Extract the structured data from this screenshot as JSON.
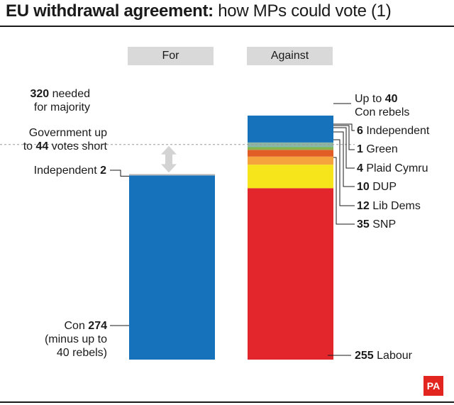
{
  "title": {
    "bold": "EU withdrawal agreement:",
    "rest": "how MPs could vote (1)"
  },
  "columns": {
    "for": "For",
    "against": "Against"
  },
  "labels": {
    "majority_num": "320",
    "majority_text1": "needed",
    "majority_text2": "for majority",
    "short_line1": "Government up",
    "short_pre": "to",
    "short_num": "44",
    "short_post": "votes short",
    "indep_left_text": "Independent",
    "indep_left_num": "2",
    "con_text": "Con",
    "con_num": "274",
    "con_line2": "(minus up to",
    "con_line3": "40 rebels)",
    "rebels_pre": "Up to",
    "rebels_num": "40",
    "rebels_line2": "Con rebels",
    "ind_num": "6",
    "ind_text": "Independent",
    "green_num": "1",
    "green_text": "Green",
    "plaid_num": "4",
    "plaid_text": "Plaid Cymru",
    "dup_num": "10",
    "dup_text": "DUP",
    "lib_num": "12",
    "lib_text": "Lib Dems",
    "snp_num": "35",
    "snp_text": "SNP",
    "labour_num": "255",
    "labour_text": "Labour"
  },
  "logo": "PA",
  "colors": {
    "con": "#1673bb",
    "labour": "#e2262b",
    "snp": "#f7e51c",
    "libdems": "#f5a33c",
    "dup": "#e25d26",
    "plaid": "#8ab24a",
    "green": "#6cc0a8",
    "independent": "#b8b8b8",
    "header_bg": "#d9d9d9"
  },
  "chart_data": {
    "type": "bar",
    "majority": 320,
    "series": [
      {
        "column": "For",
        "stack": [
          {
            "party": "Con",
            "value": 274
          },
          {
            "party": "Independent",
            "value": 2
          }
        ]
      },
      {
        "column": "Against",
        "stack": [
          {
            "party": "Labour",
            "value": 255
          },
          {
            "party": "SNP",
            "value": 35
          },
          {
            "party": "Lib Dems",
            "value": 12
          },
          {
            "party": "DUP",
            "value": 10
          },
          {
            "party": "Plaid Cymru",
            "value": 4
          },
          {
            "party": "Green",
            "value": 1
          },
          {
            "party": "Independent",
            "value": 6
          },
          {
            "party": "Con rebels",
            "value": 40
          }
        ]
      }
    ]
  }
}
